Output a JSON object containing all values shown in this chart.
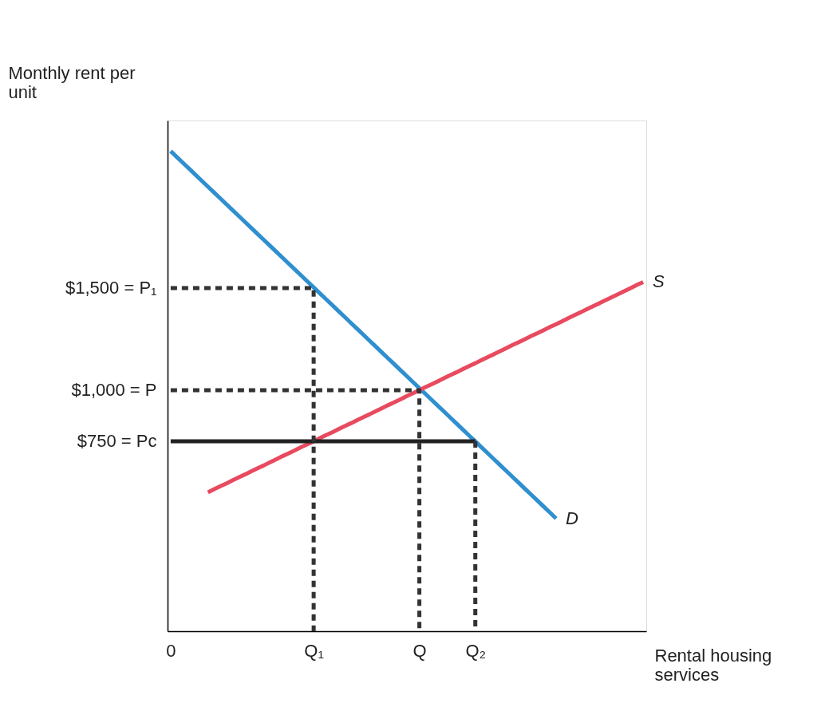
{
  "chart_data": {
    "type": "line",
    "xlabel": "Rental housing services",
    "ylabel": "Monthly rent per unit",
    "categories": [
      "0",
      null,
      null,
      null,
      null,
      null,
      null,
      null,
      null,
      null,
      null,
      null,
      null,
      null,
      null,
      null,
      null,
      null,
      null,
      null,
      null,
      null,
      null,
      "Q₁",
      null,
      null,
      null,
      null,
      null,
      null,
      null,
      null,
      null,
      null,
      null,
      null,
      null,
      null,
      null,
      null,
      "Q",
      null,
      null,
      null,
      null,
      null,
      null,
      null,
      null,
      "Q₂",
      null,
      null,
      null,
      null,
      null,
      null,
      null,
      null,
      null,
      null,
      null,
      null,
      null,
      null,
      null,
      null,
      null,
      null,
      null,
      null,
      null,
      null,
      null,
      null,
      null,
      null,
      null
    ],
    "ylim": [
      -180,
      2320
    ],
    "yticks": [
      {
        "value": 750,
        "label": "$750 = Pc"
      },
      {
        "value": 1000,
        "label": "$1,000 = P"
      },
      {
        "value": 1500,
        "label": "$1,500 = P₁"
      }
    ],
    "grid": false,
    "series": [
      {
        "name": "D",
        "color": "#2f8fcf",
        "values": [
          2170,
          2141,
          2112,
          2083,
          2054,
          2025,
          1996,
          1967,
          1938,
          1909,
          1880,
          1851,
          1822,
          1793,
          1764,
          1735,
          1706,
          1677,
          1648,
          1619,
          1590,
          1561,
          1532,
          1503,
          1474,
          1445,
          1416,
          1387,
          1358,
          1329,
          1300,
          1271,
          1242,
          1213,
          1184,
          1155,
          1126,
          1097,
          1068,
          1039,
          1010,
          981,
          952,
          923,
          894,
          865,
          836,
          807,
          778,
          749,
          720,
          691,
          662,
          633,
          604,
          575,
          546,
          517,
          488,
          459,
          430,
          401,
          372,
          null,
          null,
          null,
          null,
          null,
          null,
          null,
          null,
          null,
          null,
          null,
          null,
          null,
          null
        ],
        "line_style": "solid"
      },
      {
        "name": "S",
        "color": "#e84a5f",
        "values": [
          null,
          null,
          null,
          null,
          null,
          null,
          500,
          515,
          530,
          544,
          559,
          574,
          588,
          603,
          618,
          632,
          647,
          662,
          677,
          691,
          706,
          721,
          735,
          750,
          765,
          780,
          794,
          809,
          824,
          838,
          853,
          868,
          882,
          897,
          912,
          927,
          941,
          956,
          971,
          985,
          1000,
          1015,
          1029,
          1044,
          1059,
          1074,
          1088,
          1103,
          1118,
          1132,
          1147,
          1162,
          1176,
          1191,
          1206,
          1221,
          1235,
          1250,
          1265,
          1279,
          1294,
          1309,
          1323,
          1338,
          1353,
          1368,
          1382,
          1397,
          1412,
          1426,
          1441,
          1456,
          1470,
          1485,
          1500,
          1515,
          1529
        ],
        "line_style": "solid"
      },
      {
        "color": "#222222",
        "x": [
          "0",
          "Q₂"
        ],
        "values": [
          750,
          750
        ],
        "line_style": "solid"
      },
      {
        "color": "#333333",
        "x": [
          "0",
          "Q₁",
          "Q₁"
        ],
        "values": [
          1500,
          1500,
          -180
        ],
        "line_style": "dashed"
      },
      {
        "color": "#333333",
        "x": [
          "0",
          "Q",
          "Q"
        ],
        "values": [
          1000,
          1000,
          -180
        ],
        "line_style": "dashed"
      },
      {
        "color": "#333333",
        "x": [
          "Q₂",
          "Q₂"
        ],
        "values": [
          750,
          -180
        ],
        "line_style": "dashed"
      }
    ]
  }
}
